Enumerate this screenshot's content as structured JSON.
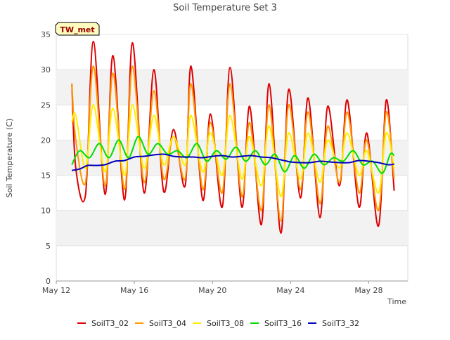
{
  "chart_data": {
    "type": "line",
    "title": "Soil Temperature Set 3",
    "xlabel": "Time",
    "ylabel": "Soil Temperature (C)",
    "badge": "TW_met",
    "x_start": "2024-05-12",
    "x_ticks": [
      {
        "day": 0,
        "label": "May 12"
      },
      {
        "day": 4,
        "label": "May 16"
      },
      {
        "day": 8,
        "label": "May 20"
      },
      {
        "day": 12,
        "label": "May 24"
      },
      {
        "day": 16,
        "label": "May 28"
      }
    ],
    "xlim": [
      0,
      18
    ],
    "ylim": [
      0,
      35
    ],
    "y_ticks": [
      0,
      5,
      10,
      15,
      20,
      25,
      30,
      35
    ],
    "grid": "horizontal bands",
    "legend_position": "bottom",
    "colors": {
      "SoilT3_02": "#dd0000",
      "SoilT3_04": "#ff9900",
      "SoilT3_08": "#ffee00",
      "SoilT3_16": "#00dd00",
      "SoilT3_32": "#0000bb"
    },
    "series": [
      {
        "name": "SoilT3_02",
        "points": [
          [
            0.8,
            28
          ],
          [
            1.0,
            16
          ],
          [
            1.5,
            12.3
          ],
          [
            1.9,
            34
          ],
          [
            2.5,
            12.3
          ],
          [
            2.9,
            32
          ],
          [
            3.5,
            11.5
          ],
          [
            3.9,
            33.8
          ],
          [
            4.5,
            12.5
          ],
          [
            5.0,
            30
          ],
          [
            5.5,
            12.7
          ],
          [
            6.0,
            21.5
          ],
          [
            6.6,
            13.5
          ],
          [
            6.9,
            30.5
          ],
          [
            7.5,
            11.5
          ],
          [
            7.9,
            23.7
          ],
          [
            8.5,
            10.5
          ],
          [
            8.9,
            30.3
          ],
          [
            9.5,
            10.5
          ],
          [
            9.9,
            24.8
          ],
          [
            10.5,
            8
          ],
          [
            10.9,
            28
          ],
          [
            11.5,
            6.8
          ],
          [
            11.9,
            27.2
          ],
          [
            12.5,
            11.8
          ],
          [
            12.9,
            26
          ],
          [
            13.5,
            9
          ],
          [
            13.9,
            24.8
          ],
          [
            14.5,
            13.5
          ],
          [
            14.9,
            25.7
          ],
          [
            15.5,
            10.5
          ],
          [
            15.9,
            21
          ],
          [
            16.5,
            7.8
          ],
          [
            16.9,
            25.7
          ],
          [
            17.3,
            12.8
          ]
        ]
      },
      {
        "name": "SoilT3_04",
        "points": [
          [
            0.8,
            28
          ],
          [
            1.0,
            20
          ],
          [
            1.5,
            14
          ],
          [
            1.9,
            30.5
          ],
          [
            2.5,
            13.5
          ],
          [
            2.9,
            29.5
          ],
          [
            3.5,
            13
          ],
          [
            3.9,
            30.5
          ],
          [
            4.5,
            14
          ],
          [
            5.0,
            27
          ],
          [
            5.5,
            14.5
          ],
          [
            6.0,
            20.5
          ],
          [
            6.6,
            14.5
          ],
          [
            6.9,
            28
          ],
          [
            7.5,
            13
          ],
          [
            7.9,
            22.5
          ],
          [
            8.5,
            12.5
          ],
          [
            8.9,
            28
          ],
          [
            9.5,
            12
          ],
          [
            9.9,
            22.5
          ],
          [
            10.5,
            10
          ],
          [
            10.9,
            25
          ],
          [
            11.5,
            8.5
          ],
          [
            11.9,
            25
          ],
          [
            12.5,
            13
          ],
          [
            12.9,
            24
          ],
          [
            13.5,
            11
          ],
          [
            13.9,
            22
          ],
          [
            14.5,
            14
          ],
          [
            14.9,
            24
          ],
          [
            15.5,
            12.5
          ],
          [
            15.9,
            20
          ],
          [
            16.5,
            10
          ],
          [
            16.9,
            24
          ],
          [
            17.3,
            14.5
          ]
        ]
      },
      {
        "name": "SoilT3_08",
        "points": [
          [
            0.8,
            22.5
          ],
          [
            1.0,
            23.5
          ],
          [
            1.5,
            16
          ],
          [
            1.9,
            25
          ],
          [
            2.5,
            15.5
          ],
          [
            2.9,
            24.5
          ],
          [
            3.5,
            15
          ],
          [
            3.9,
            25
          ],
          [
            4.5,
            16
          ],
          [
            5.0,
            23.5
          ],
          [
            5.5,
            16.5
          ],
          [
            6.0,
            20.5
          ],
          [
            6.6,
            16.5
          ],
          [
            6.9,
            23.5
          ],
          [
            7.5,
            15.5
          ],
          [
            7.9,
            21
          ],
          [
            8.5,
            15
          ],
          [
            8.9,
            23.5
          ],
          [
            9.5,
            14.5
          ],
          [
            9.9,
            20.5
          ],
          [
            10.5,
            13.5
          ],
          [
            10.9,
            22
          ],
          [
            11.5,
            12
          ],
          [
            11.9,
            21
          ],
          [
            12.5,
            14.5
          ],
          [
            12.9,
            21
          ],
          [
            13.5,
            14
          ],
          [
            13.9,
            20
          ],
          [
            14.5,
            16
          ],
          [
            14.9,
            21
          ],
          [
            15.5,
            15
          ],
          [
            15.9,
            18.5
          ],
          [
            16.5,
            12.5
          ],
          [
            16.9,
            21
          ],
          [
            17.3,
            16
          ]
        ]
      },
      {
        "name": "SoilT3_16",
        "points": [
          [
            0.8,
            16.5
          ],
          [
            1.2,
            18.5
          ],
          [
            1.7,
            17.5
          ],
          [
            2.2,
            19.5
          ],
          [
            2.7,
            17.5
          ],
          [
            3.2,
            20
          ],
          [
            3.7,
            17.5
          ],
          [
            4.2,
            20.5
          ],
          [
            4.7,
            18
          ],
          [
            5.2,
            19.5
          ],
          [
            5.7,
            18
          ],
          [
            6.2,
            18.5
          ],
          [
            6.7,
            17.5
          ],
          [
            7.2,
            19.5
          ],
          [
            7.7,
            17
          ],
          [
            8.2,
            18.5
          ],
          [
            8.7,
            17.3
          ],
          [
            9.2,
            19
          ],
          [
            9.7,
            17
          ],
          [
            10.2,
            18.5
          ],
          [
            10.7,
            16.5
          ],
          [
            11.2,
            18
          ],
          [
            11.7,
            15.5
          ],
          [
            12.2,
            17.8
          ],
          [
            12.7,
            16
          ],
          [
            13.2,
            18
          ],
          [
            13.7,
            16.5
          ],
          [
            14.2,
            17.5
          ],
          [
            14.7,
            17
          ],
          [
            15.2,
            18.5
          ],
          [
            15.7,
            16.5
          ],
          [
            16.2,
            17
          ],
          [
            16.7,
            15.3
          ],
          [
            17.1,
            18
          ],
          [
            17.3,
            17.8
          ]
        ]
      },
      {
        "name": "SoilT3_32",
        "points": [
          [
            0.8,
            15.7
          ],
          [
            1.2,
            15.9
          ],
          [
            1.6,
            16.4
          ],
          [
            2.0,
            16.4
          ],
          [
            2.5,
            16.5
          ],
          [
            3.0,
            17
          ],
          [
            3.5,
            17.1
          ],
          [
            4.0,
            17.6
          ],
          [
            4.5,
            17.7
          ],
          [
            5.0,
            17.9
          ],
          [
            5.5,
            18
          ],
          [
            6.0,
            17.7
          ],
          [
            6.5,
            17.6
          ],
          [
            7.0,
            17.6
          ],
          [
            7.5,
            17.5
          ],
          [
            8.0,
            17.7
          ],
          [
            8.5,
            17.8
          ],
          [
            9.0,
            17.6
          ],
          [
            9.5,
            17.7
          ],
          [
            10.0,
            17.8
          ],
          [
            10.5,
            17.6
          ],
          [
            11.0,
            17.5
          ],
          [
            11.5,
            17.2
          ],
          [
            12.0,
            16.9
          ],
          [
            12.5,
            16.8
          ],
          [
            13.0,
            16.8
          ],
          [
            13.5,
            17
          ],
          [
            14.0,
            16.9
          ],
          [
            14.5,
            16.8
          ],
          [
            15.0,
            16.8
          ],
          [
            15.5,
            17.1
          ],
          [
            16.0,
            17
          ],
          [
            16.5,
            16.8
          ],
          [
            17.0,
            16.5
          ],
          [
            17.3,
            16.6
          ]
        ]
      }
    ]
  }
}
